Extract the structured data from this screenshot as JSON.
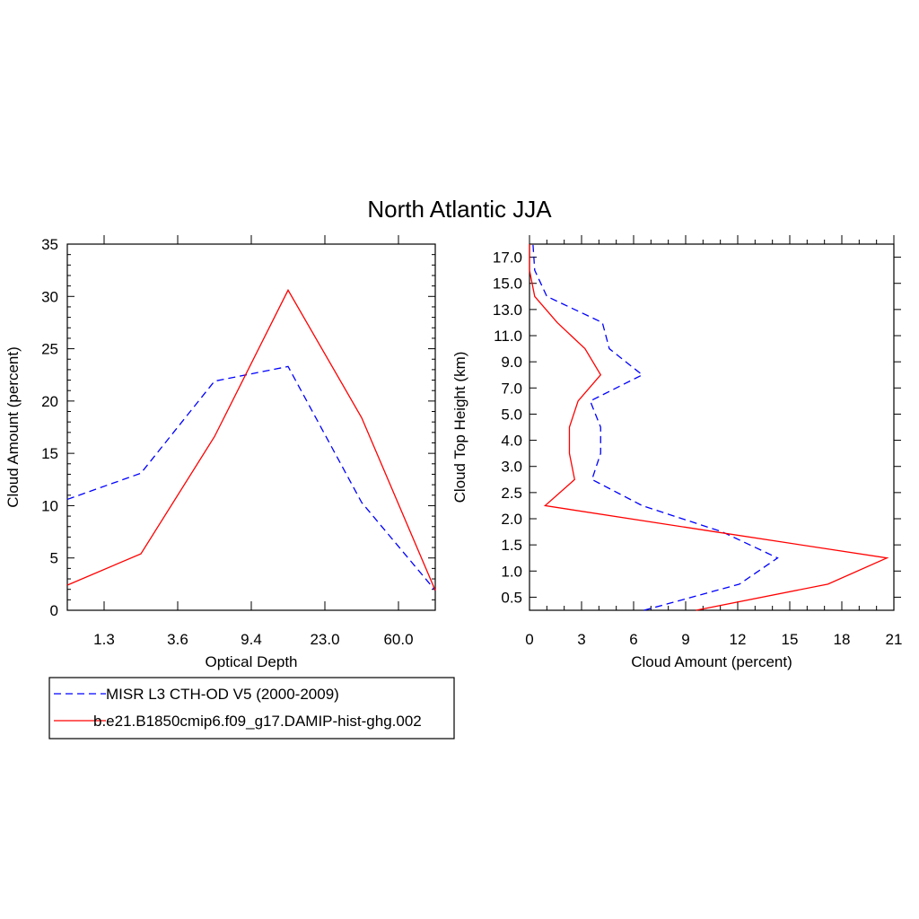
{
  "title": "North Atlantic JJA",
  "colors": {
    "series_a": "#0000ff",
    "series_b": "#ff0000"
  },
  "chart_data": [
    {
      "type": "line",
      "xlabel": "Optical Depth",
      "ylabel": "Cloud Amount (percent)",
      "ylim": [
        0,
        35
      ],
      "yticks": [
        0,
        5,
        10,
        15,
        20,
        25,
        30,
        35
      ],
      "xtick_labels": [
        "1.3",
        "3.6",
        "9.4",
        "23.0",
        "60.0"
      ],
      "x_bins": [
        "0-1.3",
        "1.3-3.6",
        "3.6-9.4",
        "9.4-23.0",
        "23.0-60.0",
        ">60.0"
      ],
      "series": [
        {
          "name": "MISR L3 CTH-OD V5 (2000-2009)",
          "style": "dashed",
          "color": "#0000ff",
          "values": [
            10.6,
            13.1,
            21.9,
            23.3,
            10.3,
            1.9
          ]
        },
        {
          "name": "b.e21.B1850cmip6.f09_g17.DAMIP-hist-ghg.002",
          "style": "solid",
          "color": "#ff0000",
          "values": [
            2.4,
            5.4,
            16.6,
            30.6,
            18.4,
            1.9
          ]
        }
      ]
    },
    {
      "type": "line",
      "xlabel": "Cloud Amount (percent)",
      "ylabel": "Cloud Top Height (km)",
      "xlim": [
        0,
        21
      ],
      "xticks": [
        "0",
        "3",
        "6",
        "9",
        "12",
        "15",
        "18",
        "21"
      ],
      "ytick_labels": [
        "0.5",
        "1.0",
        "1.5",
        "2.0",
        "2.5",
        "3.0",
        "4.0",
        "5.0",
        "7.0",
        "9.0",
        "11.0",
        "13.0",
        "15.0",
        "17.0"
      ],
      "series": [
        {
          "name": "MISR L3 CTH-OD V5 (2000-2009)",
          "style": "dashed",
          "color": "#0000ff",
          "values": [
            6.6,
            12.1,
            14.3,
            11.1,
            6.5,
            3.6,
            4.1,
            4.1,
            3.5,
            6.5,
            4.6,
            4.2,
            1.0,
            0.3,
            0.2
          ]
        },
        {
          "name": "b.e21.B1850cmip6.f09_g17.DAMIP-hist-ghg.002",
          "style": "solid",
          "color": "#ff0000",
          "values": [
            9.6,
            17.2,
            20.6,
            10.7,
            0.9,
            2.6,
            2.3,
            2.3,
            2.8,
            4.1,
            3.2,
            1.6,
            0.3,
            0.0,
            0.0
          ]
        }
      ]
    }
  ]
}
